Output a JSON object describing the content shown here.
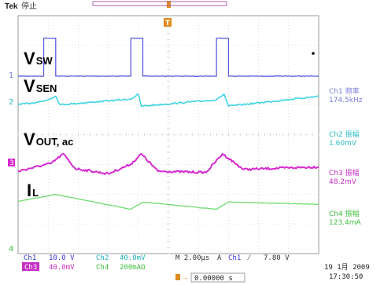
{
  "header": {
    "brand": "Tek",
    "state": "停止"
  },
  "labels": {
    "vsw": {
      "main": "V",
      "sub": "SW"
    },
    "vsen": {
      "main": "V",
      "sub": "SEN"
    },
    "vout": {
      "main": "V",
      "sub": "OUT, ac"
    },
    "il": {
      "main": "I",
      "sub": "L"
    }
  },
  "channel_markers": [
    "1",
    "2",
    "3",
    "4"
  ],
  "trigger_marker": "T",
  "measurements": [
    {
      "label": "Ch1 频率",
      "value": "174.5kHz",
      "color": "#7b7bd6"
    },
    {
      "label": "Ch2 振幅",
      "value": "1.60mV",
      "color": "#2fbdc4"
    },
    {
      "label": "Ch3 振幅",
      "value": "48.2mV",
      "color": "#c62fc6"
    },
    {
      "label": "Ch4 振幅",
      "value": "123.4mA",
      "color": "#3fbf3f"
    }
  ],
  "settings": {
    "row1": [
      {
        "text": "Ch1",
        "color": "#3a3ad0",
        "boxed": false
      },
      {
        "text": "10.0 V",
        "color": "#3a3ad0",
        "boxed": false
      },
      {
        "text": "Ch2",
        "color": "#1fb2bd",
        "boxed": false
      },
      {
        "text": "40.0mV",
        "color": "#1fb2bd",
        "boxed": false
      },
      {
        "text": "M 2.00µs",
        "color": "#333333",
        "boxed": false
      },
      {
        "text": "A",
        "color": "#333333",
        "boxed": false
      },
      {
        "text": "Ch1",
        "color": "#3a3ad0",
        "boxed": false
      },
      {
        "text": "7.80 V",
        "color": "#333333",
        "boxed": false
      }
    ],
    "row2": [
      {
        "text": "Ch3",
        "color": "#ffffff",
        "boxed": true
      },
      {
        "text": "40.0mV",
        "color": "#c62fc6",
        "boxed": false
      },
      {
        "text": "Ch4",
        "color": "#3fbf3f",
        "boxed": false
      },
      {
        "text": "200mAΩ",
        "color": "#3fbf3f",
        "boxed": false
      }
    ],
    "offset": "0.00000 s",
    "date": "19 1月  2009",
    "time": "17:30:50"
  },
  "colors": {
    "ch1": "#5d5de6",
    "ch2": "#3fd4e3",
    "ch3": "#d62ad0",
    "ch4": "#6edc6e",
    "grid": "#c9c9c9",
    "frame": "#9a9a9a",
    "trigger": "#e08a1e"
  },
  "chart_data": {
    "type": "line",
    "title": "",
    "xlabel": "",
    "ylabel": "",
    "x_divisions": 10,
    "y_divisions": 8,
    "time_per_div_us": 2,
    "x_unit": "µs",
    "xlim": [
      -5,
      15
    ],
    "series": [
      {
        "name": "Ch1",
        "unit": "V",
        "points": [
          [
            -5,
            0
          ],
          [
            -3.3,
            0
          ],
          [
            -3.3,
            19
          ],
          [
            -2.5,
            19
          ],
          [
            -2.5,
            0
          ],
          [
            2.5,
            0
          ],
          [
            2.5,
            19
          ],
          [
            3.3,
            19
          ],
          [
            3.3,
            0
          ],
          [
            8.2,
            0
          ],
          [
            8.2,
            19
          ],
          [
            9.0,
            19
          ],
          [
            9.0,
            0
          ],
          [
            15,
            0
          ]
        ]
      },
      {
        "name": "Ch2",
        "unit": "mV",
        "points": [
          [
            -5,
            -0.6
          ],
          [
            -3.3,
            -0.1
          ],
          [
            -2.5,
            0.6
          ],
          [
            -2.2,
            -0.6
          ],
          [
            2.5,
            0.2
          ],
          [
            3.0,
            0.9
          ],
          [
            3.2,
            -0.8
          ],
          [
            8.2,
            0.1
          ],
          [
            8.7,
            0.9
          ],
          [
            9.0,
            -0.8
          ],
          [
            15,
            0.6
          ]
        ]
      },
      {
        "name": "Ch3",
        "unit": "mV",
        "points": [
          [
            -5,
            -20
          ],
          [
            -2.8,
            -2
          ],
          [
            -2.0,
            20
          ],
          [
            -1.2,
            -14
          ],
          [
            1.0,
            -26
          ],
          [
            2.5,
            -4
          ],
          [
            3.2,
            20
          ],
          [
            4.3,
            -20
          ],
          [
            7.5,
            -23
          ],
          [
            8.6,
            20
          ],
          [
            10.0,
            -16
          ],
          [
            15,
            -10
          ]
        ]
      },
      {
        "name": "Ch4",
        "unit": "mA",
        "points": [
          [
            -5,
            20
          ],
          [
            -2.5,
            128
          ],
          [
            2.5,
            -106
          ],
          [
            3.3,
            8
          ],
          [
            8.2,
            -106
          ],
          [
            9.0,
            8
          ],
          [
            15,
            -28
          ]
        ]
      }
    ]
  }
}
